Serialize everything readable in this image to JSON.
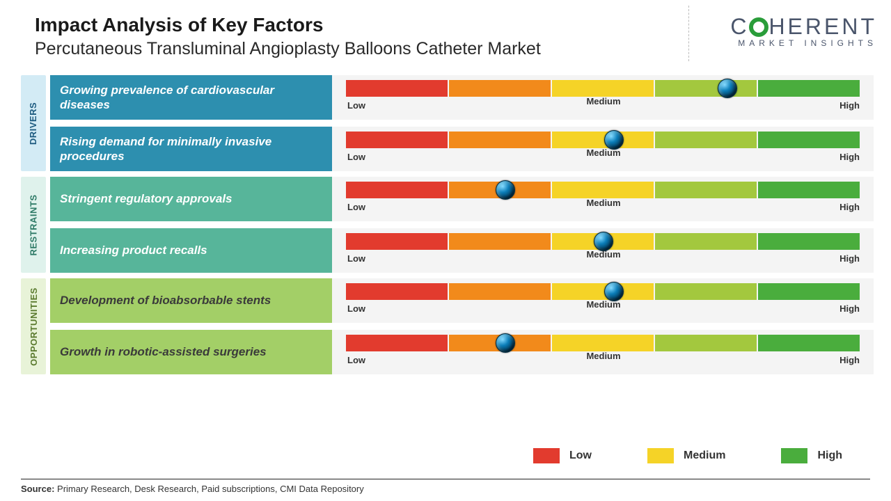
{
  "header": {
    "title": "Impact Analysis of Key Factors",
    "subtitle": "Percutaneous Transluminal Angioplasty Balloons Catheter Market"
  },
  "logo": {
    "pre": "C",
    "post": "HERENT",
    "sub": "MARKET INSIGHTS"
  },
  "gauge": {
    "segment_colors": [
      "#e23b2e",
      "#f28a1b",
      "#f5d327",
      "#a3c83e",
      "#4aad3d"
    ],
    "label_low": "Low",
    "label_medium": "Medium",
    "label_high": "High"
  },
  "categories": [
    {
      "name": "DRIVERS",
      "tab_bg": "#d3ebf5",
      "tab_color": "#1d5b80",
      "factor_bg": "#2d8faf",
      "factor_color": "#ffffff",
      "rows": [
        {
          "label": "Growing prevalence of cardiovascular diseases",
          "marker_pct": 74
        },
        {
          "label": "Rising demand for minimally invasive procedures",
          "marker_pct": 52
        }
      ]
    },
    {
      "name": "RESTRAINTS",
      "tab_bg": "#dff2ec",
      "tab_color": "#2d7a66",
      "factor_bg": "#57b59a",
      "factor_color": "#ffffff",
      "rows": [
        {
          "label": "Stringent regulatory approvals",
          "marker_pct": 31
        },
        {
          "label": "Increasing product recalls",
          "marker_pct": 50
        }
      ]
    },
    {
      "name": "OPPORTUNITIES",
      "tab_bg": "#e8f3d8",
      "tab_color": "#5a7a2e",
      "factor_bg": "#a3cf67",
      "factor_color": "#3a3a3a",
      "rows": [
        {
          "label": "Development of bioabsorbable stents",
          "marker_pct": 52
        },
        {
          "label": "Growth in robotic-assisted surgeries",
          "marker_pct": 31
        }
      ]
    }
  ],
  "legend": {
    "items": [
      {
        "label": "Low",
        "color": "#e23b2e"
      },
      {
        "label": "Medium",
        "color": "#f5d327"
      },
      {
        "label": "High",
        "color": "#4aad3d"
      }
    ]
  },
  "source": {
    "prefix": "Source:",
    "text": "Primary Research, Desk Research, Paid subscriptions, CMI Data Repository"
  }
}
